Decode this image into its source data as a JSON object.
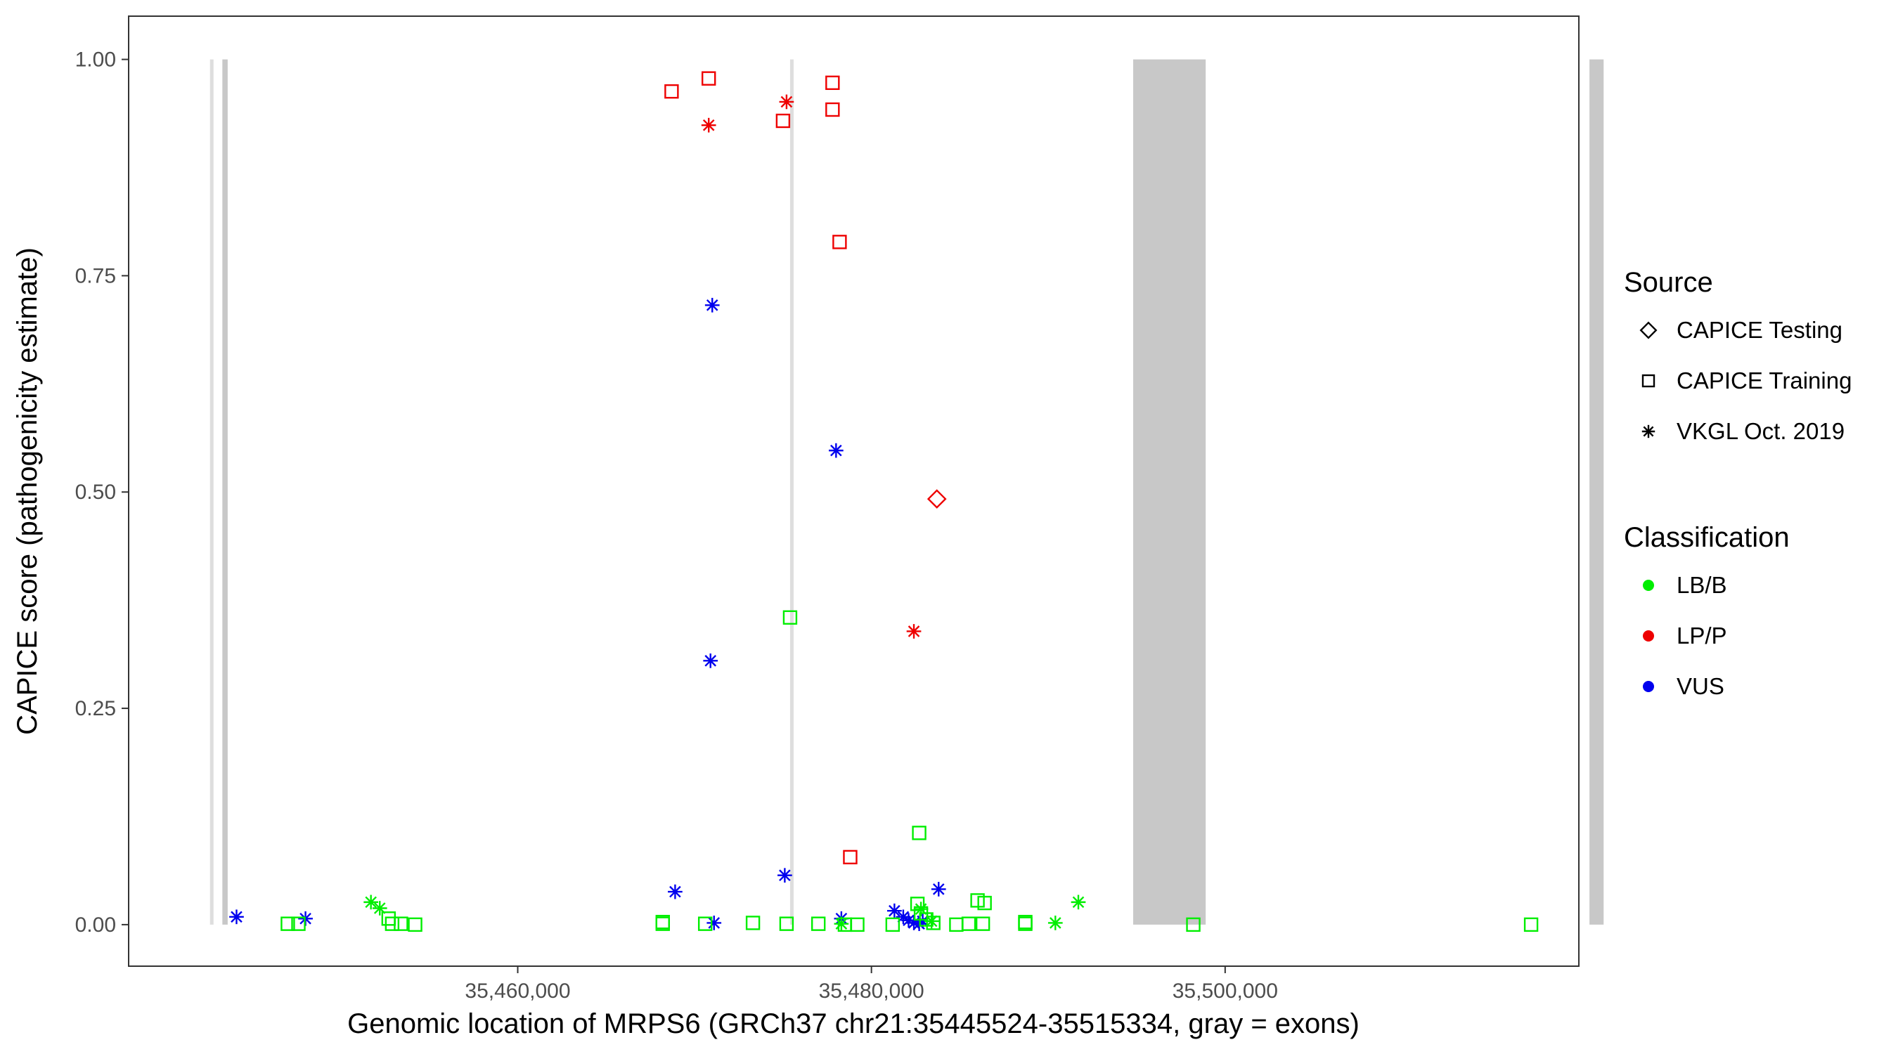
{
  "chart_data": {
    "type": "scatter",
    "xlabel": "Genomic location of MRPS6 (GRCh37 chr21:35445524-35515334, gray = exons)",
    "ylabel": "CAPICE score (pathogenicity estimate)",
    "xlim": [
      35438000,
      35520000
    ],
    "ylim": [
      -0.048,
      1.05
    ],
    "x_ticks": [
      {
        "value": 35460000,
        "label": "35,460,000"
      },
      {
        "value": 35480000,
        "label": "35,480,000"
      },
      {
        "value": 35500000,
        "label": "35,500,000"
      }
    ],
    "y_ticks": [
      {
        "value": 0.0,
        "label": "0.00"
      },
      {
        "value": 0.25,
        "label": "0.25"
      },
      {
        "value": 0.5,
        "label": "0.50"
      },
      {
        "value": 0.75,
        "label": "0.75"
      },
      {
        "value": 1.0,
        "label": "1.00"
      }
    ],
    "grid": false,
    "exons": [
      {
        "start": 35442600,
        "end": 35442800,
        "shade": "light"
      },
      {
        "start": 35443300,
        "end": 35443600,
        "shade": "dark"
      },
      {
        "start": 35475400,
        "end": 35475600,
        "shade": "light"
      },
      {
        "start": 35494800,
        "end": 35498900,
        "shade": "dark"
      },
      {
        "start": 35520600,
        "end": 35521400,
        "shade": "dark"
      }
    ],
    "colors": {
      "LB/B": "#00ee00",
      "LP/P": "#ee0000",
      "VUS": "#0000ee",
      "exon_dark": "#c8c8c8",
      "exon_light": "#dedede"
    },
    "legend": {
      "position": "right",
      "source_title": "Source",
      "source_entries": [
        {
          "shape": "diamond",
          "label": "CAPICE Testing"
        },
        {
          "shape": "square",
          "label": "CAPICE Training"
        },
        {
          "shape": "asterisk",
          "label": "VKGL Oct. 2019"
        }
      ],
      "class_title": "Classification",
      "class_entries": [
        {
          "key": "LB/B",
          "label": "LB/B"
        },
        {
          "key": "LP/P",
          "label": "LP/P"
        },
        {
          "key": "VUS",
          "label": "VUS"
        }
      ]
    },
    "points": [
      {
        "x": 35468700,
        "y": 0.963,
        "shape": "square",
        "class": "LP/P"
      },
      {
        "x": 35470800,
        "y": 0.978,
        "shape": "square",
        "class": "LP/P"
      },
      {
        "x": 35475000,
        "y": 0.929,
        "shape": "square",
        "class": "LP/P"
      },
      {
        "x": 35477800,
        "y": 0.973,
        "shape": "square",
        "class": "LP/P"
      },
      {
        "x": 35477800,
        "y": 0.942,
        "shape": "square",
        "class": "LP/P"
      },
      {
        "x": 35478200,
        "y": 0.789,
        "shape": "square",
        "class": "LP/P"
      },
      {
        "x": 35478800,
        "y": 0.078,
        "shape": "square",
        "class": "LP/P"
      },
      {
        "x": 35470800,
        "y": 0.924,
        "shape": "asterisk",
        "class": "LP/P"
      },
      {
        "x": 35475200,
        "y": 0.951,
        "shape": "asterisk",
        "class": "LP/P"
      },
      {
        "x": 35482400,
        "y": 0.339,
        "shape": "asterisk",
        "class": "LP/P"
      },
      {
        "x": 35483700,
        "y": 0.492,
        "shape": "diamond",
        "class": "LP/P"
      },
      {
        "x": 35471000,
        "y": 0.716,
        "shape": "asterisk",
        "class": "VUS"
      },
      {
        "x": 35478000,
        "y": 0.548,
        "shape": "asterisk",
        "class": "VUS"
      },
      {
        "x": 35470900,
        "y": 0.305,
        "shape": "asterisk",
        "class": "VUS"
      },
      {
        "x": 35468900,
        "y": 0.038,
        "shape": "asterisk",
        "class": "VUS"
      },
      {
        "x": 35475100,
        "y": 0.057,
        "shape": "asterisk",
        "class": "VUS"
      },
      {
        "x": 35483800,
        "y": 0.041,
        "shape": "asterisk",
        "class": "VUS"
      },
      {
        "x": 35444100,
        "y": 0.009,
        "shape": "asterisk",
        "class": "VUS"
      },
      {
        "x": 35448000,
        "y": 0.007,
        "shape": "asterisk",
        "class": "VUS"
      },
      {
        "x": 35471100,
        "y": 0.002,
        "shape": "asterisk",
        "class": "VUS"
      },
      {
        "x": 35478300,
        "y": 0.007,
        "shape": "asterisk",
        "class": "VUS"
      },
      {
        "x": 35481300,
        "y": 0.016,
        "shape": "asterisk",
        "class": "VUS"
      },
      {
        "x": 35481800,
        "y": 0.009,
        "shape": "asterisk",
        "class": "VUS"
      },
      {
        "x": 35482100,
        "y": 0.005,
        "shape": "asterisk",
        "class": "VUS"
      },
      {
        "x": 35482400,
        "y": 0.002,
        "shape": "asterisk",
        "class": "VUS"
      },
      {
        "x": 35482700,
        "y": 0.001,
        "shape": "asterisk",
        "class": "VUS"
      },
      {
        "x": 35482900,
        "y": 0.004,
        "shape": "asterisk",
        "class": "VUS"
      },
      {
        "x": 35475400,
        "y": 0.355,
        "shape": "square",
        "class": "LB/B"
      },
      {
        "x": 35482700,
        "y": 0.106,
        "shape": "square",
        "class": "LB/B"
      },
      {
        "x": 35447000,
        "y": 0.001,
        "shape": "square",
        "class": "LB/B"
      },
      {
        "x": 35447600,
        "y": 0.001,
        "shape": "square",
        "class": "LB/B"
      },
      {
        "x": 35452700,
        "y": 0.007,
        "shape": "square",
        "class": "LB/B"
      },
      {
        "x": 35452900,
        "y": 0.001,
        "shape": "square",
        "class": "LB/B"
      },
      {
        "x": 35453400,
        "y": 0.001,
        "shape": "square",
        "class": "LB/B"
      },
      {
        "x": 35454200,
        "y": 0.0,
        "shape": "square",
        "class": "LB/B"
      },
      {
        "x": 35468200,
        "y": 0.001,
        "shape": "square",
        "class": "LB/B"
      },
      {
        "x": 35468200,
        "y": 0.003,
        "shape": "square",
        "class": "LB/B"
      },
      {
        "x": 35470600,
        "y": 0.001,
        "shape": "square",
        "class": "LB/B"
      },
      {
        "x": 35473300,
        "y": 0.002,
        "shape": "square",
        "class": "LB/B"
      },
      {
        "x": 35475200,
        "y": 0.001,
        "shape": "square",
        "class": "LB/B"
      },
      {
        "x": 35477000,
        "y": 0.001,
        "shape": "square",
        "class": "LB/B"
      },
      {
        "x": 35478500,
        "y": 0.0,
        "shape": "square",
        "class": "LB/B"
      },
      {
        "x": 35479200,
        "y": 0.0,
        "shape": "square",
        "class": "LB/B"
      },
      {
        "x": 35481200,
        "y": 0.0,
        "shape": "square",
        "class": "LB/B"
      },
      {
        "x": 35482600,
        "y": 0.024,
        "shape": "square",
        "class": "LB/B"
      },
      {
        "x": 35482800,
        "y": 0.013,
        "shape": "square",
        "class": "LB/B"
      },
      {
        "x": 35483100,
        "y": 0.006,
        "shape": "square",
        "class": "LB/B"
      },
      {
        "x": 35483500,
        "y": 0.002,
        "shape": "square",
        "class": "LB/B"
      },
      {
        "x": 35484800,
        "y": 0.0,
        "shape": "square",
        "class": "LB/B"
      },
      {
        "x": 35485500,
        "y": 0.001,
        "shape": "square",
        "class": "LB/B"
      },
      {
        "x": 35486000,
        "y": 0.028,
        "shape": "square",
        "class": "LB/B"
      },
      {
        "x": 35486400,
        "y": 0.025,
        "shape": "square",
        "class": "LB/B"
      },
      {
        "x": 35486300,
        "y": 0.001,
        "shape": "square",
        "class": "LB/B"
      },
      {
        "x": 35488700,
        "y": 0.003,
        "shape": "square",
        "class": "LB/B"
      },
      {
        "x": 35488700,
        "y": 0.001,
        "shape": "square",
        "class": "LB/B"
      },
      {
        "x": 35498200,
        "y": 0.0,
        "shape": "square",
        "class": "LB/B"
      },
      {
        "x": 35517300,
        "y": 0.0,
        "shape": "square",
        "class": "LB/B"
      },
      {
        "x": 35451700,
        "y": 0.026,
        "shape": "asterisk",
        "class": "LB/B"
      },
      {
        "x": 35452200,
        "y": 0.019,
        "shape": "asterisk",
        "class": "LB/B"
      },
      {
        "x": 35478300,
        "y": 0.001,
        "shape": "asterisk",
        "class": "LB/B"
      },
      {
        "x": 35482800,
        "y": 0.018,
        "shape": "asterisk",
        "class": "LB/B"
      },
      {
        "x": 35483400,
        "y": 0.004,
        "shape": "asterisk",
        "class": "LB/B"
      },
      {
        "x": 35490400,
        "y": 0.002,
        "shape": "asterisk",
        "class": "LB/B"
      },
      {
        "x": 35491700,
        "y": 0.026,
        "shape": "asterisk",
        "class": "LB/B"
      }
    ]
  }
}
